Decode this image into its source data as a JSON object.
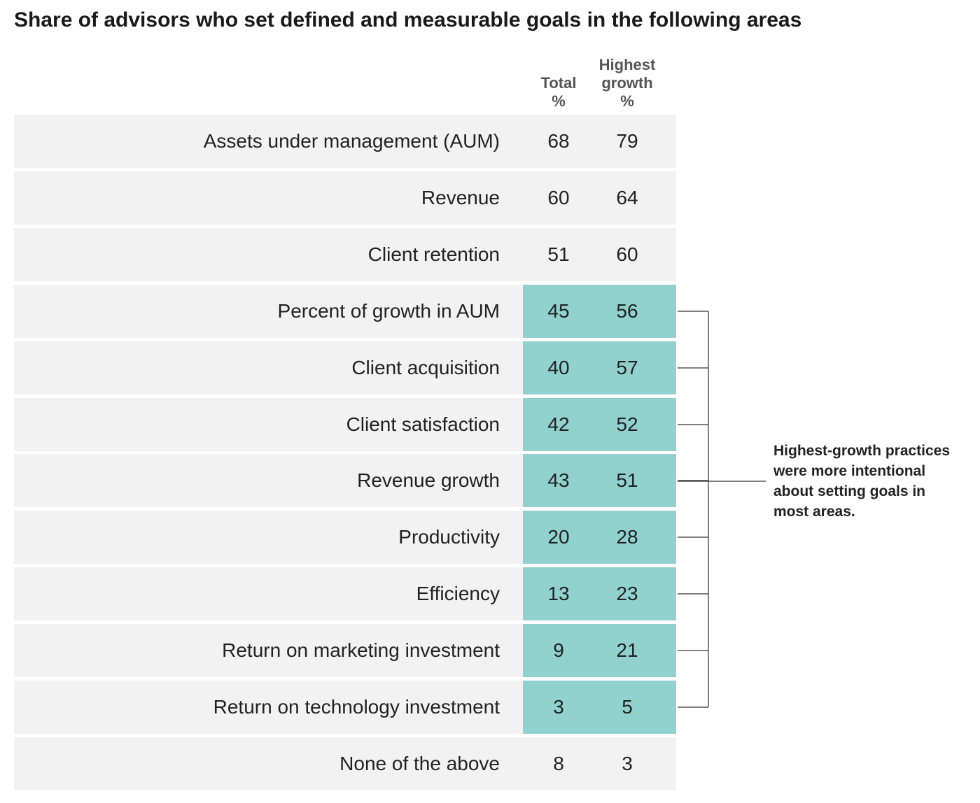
{
  "chart_data": {
    "type": "table",
    "title": "Share of advisors who set defined and measurable goals in the following areas",
    "columns": [
      {
        "lines": [
          "Total",
          "%"
        ]
      },
      {
        "lines": [
          "Highest",
          "growth",
          "%"
        ]
      }
    ],
    "rows": [
      {
        "label": "Assets under management (AUM)",
        "total": "68",
        "highest": "79",
        "highlighted": false
      },
      {
        "label": "Revenue",
        "total": "60",
        "highest": "64",
        "highlighted": false
      },
      {
        "label": "Client retention",
        "total": "51",
        "highest": "60",
        "highlighted": false
      },
      {
        "label": "Percent of growth in AUM",
        "total": "45",
        "highest": "56",
        "highlighted": true
      },
      {
        "label": "Client acquisition",
        "total": "40",
        "highest": "57",
        "highlighted": true
      },
      {
        "label": "Client satisfaction",
        "total": "42",
        "highest": "52",
        "highlighted": true
      },
      {
        "label": "Revenue growth",
        "total": "43",
        "highest": "51",
        "highlighted": true
      },
      {
        "label": "Productivity",
        "total": "20",
        "highest": "28",
        "highlighted": true
      },
      {
        "label": "Efficiency",
        "total": "13",
        "highest": "23",
        "highlighted": true
      },
      {
        "label": "Return on marketing investment",
        "total": "9",
        "highest": "21",
        "highlighted": true
      },
      {
        "label": "Return on technology investment",
        "total": "3",
        "highest": "5",
        "highlighted": true
      },
      {
        "label": "None of the above",
        "total": "8",
        "highest": "3",
        "highlighted": false
      }
    ],
    "annotation": {
      "lines": [
        "Highest-growth practices",
        "were more intentional",
        "about setting goals in",
        "most areas."
      ]
    }
  },
  "colors": {
    "row_background": "#f2f2f3",
    "highlight": "#91d2cf",
    "header_text": "#555555",
    "bracket_line": "#333333"
  }
}
